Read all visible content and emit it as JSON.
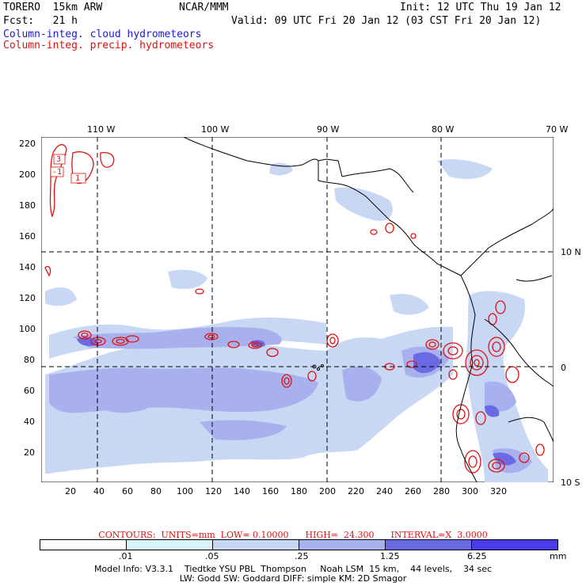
{
  "header": {
    "model": "TORERO  15km ARW",
    "org": "NCAR/MMM",
    "init": "Init: 12 UTC Thu 19 Jan 12",
    "fcst": "Fcst:   21 h",
    "valid": "Valid: 09 UTC Fri 20 Jan 12 (03 CST Fri 20 Jan 12)",
    "field1": "Column-integ. cloud hydrometeors",
    "field2": "Column-integ. precip. hydrometeors"
  },
  "colors": {
    "field1_text": "#1a1ad6",
    "field2_text": "#e01010",
    "contour": "#e01010",
    "coast": "#000000"
  },
  "map": {
    "lon_labels": [
      "110 W",
      "100 W",
      "90 W",
      "80 W",
      "70 W"
    ],
    "lat_labels": [
      "10 N",
      "0",
      "10 S"
    ],
    "y_ticks": [
      "220",
      "200",
      "180",
      "160",
      "140",
      "120",
      "100",
      "80",
      "60",
      "40",
      "20"
    ],
    "x_ticks": [
      "20",
      "40",
      "60",
      "80",
      "100",
      "120",
      "140",
      "160",
      "180",
      "200",
      "220",
      "240",
      "260",
      "280",
      "300",
      "320"
    ],
    "contour_labels": [
      "3",
      "-1",
      "1"
    ]
  },
  "contours_line": "CONTOURS:  UNITS=mm  LOW= 0.10000      HIGH=  24.300      INTERVAL=X  3.0000",
  "colorbar": {
    "colors": [
      "#ffffff",
      "#d8f4f8",
      "#c8d8f4",
      "#a8b0ee",
      "#6a6ae4",
      "#4a3ae8",
      "#2a14f0"
    ],
    "labels": [
      ".01",
      ".05",
      ".25",
      "1.25",
      "6.25"
    ],
    "unit": "mm"
  },
  "model_info": {
    "line1": "Model Info: V3.3.1    Tiedtke YSU PBL  Thompson     Noah LSM  15 km,    44 levels,    34 sec",
    "line2": "LW: Godd SW: Goddard DIFF: simple KM: 2D Smagor"
  }
}
